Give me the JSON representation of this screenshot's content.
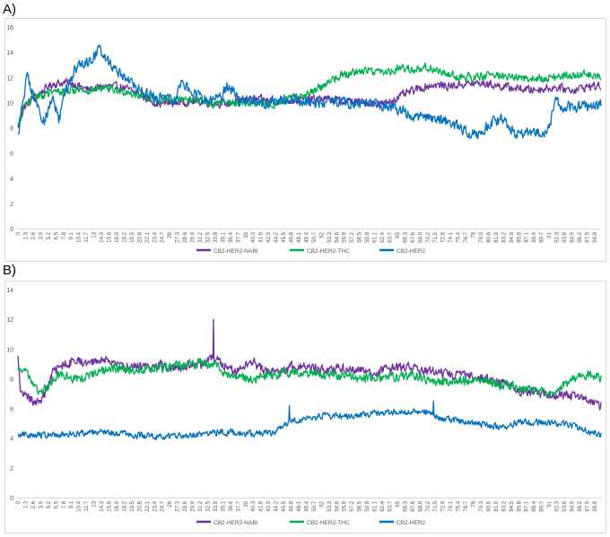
{
  "figure": {
    "panel_a_label": "A)",
    "panel_b_label": "B)"
  },
  "chart_data": [
    {
      "type": "line",
      "panel": "A)",
      "title": "",
      "xlabel": "",
      "ylabel": "",
      "ylim": [
        0,
        16
      ],
      "yticks": [
        0,
        2,
        4,
        6,
        8,
        10,
        12,
        14,
        16
      ],
      "grid": false,
      "legend_position": "bottom",
      "x_start": 0,
      "x_end": 99.9,
      "x_step": 0.1,
      "x_tick_labels": [
        "0",
        "1.3",
        "2.6",
        "3.9",
        "5.2",
        "6.5",
        "7.8",
        "9.1",
        "10.4",
        "11.7",
        "13",
        "14.3",
        "15.6",
        "16.9",
        "18.2",
        "19.5",
        "20.8",
        "22.1",
        "23.4",
        "24.7",
        "26",
        "27.3",
        "28.6",
        "29.9",
        "31.2",
        "32.5",
        "33.8",
        "35.1",
        "36.4",
        "37.7",
        "39",
        "40.3",
        "41.6",
        "42.9",
        "44.2",
        "45.5",
        "46.8",
        "48.1",
        "49.4",
        "50.7",
        "52",
        "53.3",
        "54.6",
        "55.9",
        "57.2",
        "58.5",
        "59.8",
        "61.1",
        "62.4",
        "63.7",
        "65",
        "66.3",
        "67.6",
        "68.9",
        "70.2",
        "71.5",
        "72.8",
        "74.1",
        "75.4",
        "76.7",
        "78",
        "79.3",
        "80.6",
        "81.9",
        "83.2",
        "84.5",
        "85.8",
        "87.1",
        "88.4",
        "89.7",
        "91",
        "92.3",
        "93.6",
        "94.9",
        "96.2",
        "97.5",
        "98.8"
      ],
      "series": [
        {
          "name": "CB2-HER2-NABI",
          "color": "#7030a0",
          "profile": [
            [
              0,
              8.0
            ],
            [
              1,
              9.6
            ],
            [
              3,
              10.5
            ],
            [
              6,
              11.5
            ],
            [
              9,
              11.6
            ],
            [
              12,
              11.0
            ],
            [
              15,
              11.3
            ],
            [
              18,
              11.2
            ],
            [
              21,
              10.6
            ],
            [
              24,
              9.9
            ],
            [
              27,
              10.0
            ],
            [
              30,
              10.1
            ],
            [
              33,
              10.0
            ],
            [
              36,
              9.9
            ],
            [
              40,
              10.3
            ],
            [
              44,
              10.1
            ],
            [
              48,
              10.2
            ],
            [
              52,
              10.3
            ],
            [
              56,
              10.1
            ],
            [
              60,
              10.0
            ],
            [
              63,
              9.9
            ],
            [
              65,
              10.4
            ],
            [
              68,
              11.0
            ],
            [
              71,
              11.4
            ],
            [
              74,
              11.3
            ],
            [
              77,
              11.5
            ],
            [
              80,
              11.5
            ],
            [
              84,
              11.2
            ],
            [
              88,
              11.0
            ],
            [
              92,
              11.2
            ],
            [
              95,
              11.0
            ],
            [
              98,
              11.3
            ],
            [
              100,
              11.3
            ]
          ],
          "noise": 0.45
        },
        {
          "name": "CB2-HER2-THC",
          "color": "#00b050",
          "profile": [
            [
              0,
              8.0
            ],
            [
              1,
              9.8
            ],
            [
              3,
              10.4
            ],
            [
              6,
              10.8
            ],
            [
              9,
              11.0
            ],
            [
              12,
              11.0
            ],
            [
              15,
              11.1
            ],
            [
              18,
              10.9
            ],
            [
              21,
              10.6
            ],
            [
              24,
              10.2
            ],
            [
              27,
              10.3
            ],
            [
              30,
              10.2
            ],
            [
              33,
              9.9
            ],
            [
              36,
              10.0
            ],
            [
              40,
              10.0
            ],
            [
              44,
              9.8
            ],
            [
              46,
              10.2
            ],
            [
              48,
              10.5
            ],
            [
              50,
              10.8
            ],
            [
              52,
              11.2
            ],
            [
              54,
              11.9
            ],
            [
              56,
              12.3
            ],
            [
              60,
              12.6
            ],
            [
              63,
              12.4
            ],
            [
              66,
              12.8
            ],
            [
              68,
              12.6
            ],
            [
              70,
              12.8
            ],
            [
              74,
              12.2
            ],
            [
              78,
              12.0
            ],
            [
              82,
              12.2
            ],
            [
              86,
              11.9
            ],
            [
              90,
              11.9
            ],
            [
              94,
              12.1
            ],
            [
              97,
              12.2
            ],
            [
              100,
              12.1
            ]
          ],
          "noise": 0.45
        },
        {
          "name": "CB2-HER2",
          "color": "#0070c0",
          "profile": [
            [
              0,
              7.3
            ],
            [
              0.5,
              9.0
            ],
            [
              1.5,
              12.2
            ],
            [
              3,
              10.0
            ],
            [
              4.5,
              8.5
            ],
            [
              6,
              10.5
            ],
            [
              7,
              8.4
            ],
            [
              8,
              10.6
            ],
            [
              10,
              12.8
            ],
            [
              12,
              13.2
            ],
            [
              14,
              14.2
            ],
            [
              16,
              13.0
            ],
            [
              18,
              12.2
            ],
            [
              20,
              11.3
            ],
            [
              22,
              10.6
            ],
            [
              25,
              10.3
            ],
            [
              27,
              10.3
            ],
            [
              28,
              11.6
            ],
            [
              30,
              10.8
            ],
            [
              32,
              10.3
            ],
            [
              35,
              10.5
            ],
            [
              36,
              11.3
            ],
            [
              38,
              10.2
            ],
            [
              42,
              10.0
            ],
            [
              46,
              10.3
            ],
            [
              50,
              10.0
            ],
            [
              54,
              10.1
            ],
            [
              58,
              9.9
            ],
            [
              62,
              9.8
            ],
            [
              65,
              9.5
            ],
            [
              68,
              8.9
            ],
            [
              72,
              8.6
            ],
            [
              75,
              8.2
            ],
            [
              77,
              7.7
            ],
            [
              79,
              7.5
            ],
            [
              81,
              8.4
            ],
            [
              83,
              8.7
            ],
            [
              85,
              7.6
            ],
            [
              88,
              7.5
            ],
            [
              90,
              7.6
            ],
            [
              91,
              8.0
            ],
            [
              92,
              10.1
            ],
            [
              94,
              9.6
            ],
            [
              97,
              9.7
            ],
            [
              100,
              9.9
            ]
          ],
          "noise": 0.6
        }
      ]
    },
    {
      "type": "line",
      "panel": "B)",
      "title": "",
      "xlabel": "",
      "ylabel": "",
      "ylim": [
        0,
        14
      ],
      "yticks": [
        0,
        2,
        4,
        6,
        8,
        10,
        12,
        14
      ],
      "grid": false,
      "legend_position": "bottom",
      "x_start": 0,
      "x_end": 99.9,
      "x_step": 0.1,
      "x_tick_labels": [
        "0",
        "1.3",
        "2.6",
        "3.9",
        "5.2",
        "6.5",
        "7.8",
        "9.1",
        "10.4",
        "11.7",
        "13",
        "14.3",
        "15.6",
        "16.9",
        "18.2",
        "19.5",
        "20.8",
        "22.1",
        "23.4",
        "24.7",
        "26",
        "27.3",
        "28.6",
        "29.9",
        "31.2",
        "32.5",
        "33.8",
        "35.1",
        "36.4",
        "37.7",
        "39",
        "40.3",
        "41.6",
        "42.9",
        "44.2",
        "45.5",
        "46.8",
        "48.1",
        "49.4",
        "50.7",
        "52",
        "53.3",
        "54.6",
        "55.9",
        "57.2",
        "58.5",
        "59.8",
        "61.1",
        "62.4",
        "63.7",
        "65",
        "66.3",
        "67.6",
        "68.9",
        "70.2",
        "71.5",
        "72.8",
        "74.1",
        "75.4",
        "76.7",
        "78",
        "79.3",
        "80.6",
        "81.9",
        "83.2",
        "84.5",
        "85.8",
        "87.1",
        "88.4",
        "89.7",
        "91",
        "92.3",
        "93.6",
        "94.9",
        "96.2",
        "97.5",
        "98.8"
      ],
      "series": [
        {
          "name": "CB2-HER2-NABI",
          "color": "#7030a0",
          "profile": [
            [
              0,
              9.4
            ],
            [
              0.5,
              7.0
            ],
            [
              3,
              6.4
            ],
            [
              4.5,
              6.8
            ],
            [
              6,
              8.4
            ],
            [
              8,
              9.0
            ],
            [
              10,
              9.2
            ],
            [
              12,
              9.1
            ],
            [
              15,
              9.3
            ],
            [
              18,
              8.9
            ],
            [
              21,
              8.8
            ],
            [
              24,
              8.9
            ],
            [
              27,
              8.8
            ],
            [
              30,
              8.9
            ],
            [
              32,
              9.0
            ],
            [
              33,
              9.4
            ],
            [
              35,
              9.0
            ],
            [
              37,
              8.5
            ],
            [
              40,
              9.2
            ],
            [
              42,
              8.6
            ],
            [
              45,
              8.5
            ],
            [
              48,
              8.9
            ],
            [
              52,
              8.6
            ],
            [
              56,
              8.7
            ],
            [
              60,
              8.5
            ],
            [
              63,
              8.6
            ],
            [
              66,
              8.8
            ],
            [
              70,
              8.5
            ],
            [
              74,
              8.3
            ],
            [
              78,
              8.1
            ],
            [
              82,
              7.8
            ],
            [
              84,
              7.5
            ],
            [
              86,
              7.2
            ],
            [
              90,
              7.0
            ],
            [
              94,
              6.9
            ],
            [
              97,
              6.6
            ],
            [
              100,
              6.2
            ]
          ],
          "noise": 0.45,
          "spikes": [
            [
              33.5,
              12.0
            ]
          ]
        },
        {
          "name": "CB2-HER2-THC",
          "color": "#00b050",
          "profile": [
            [
              0,
              8.4
            ],
            [
              1,
              8.8
            ],
            [
              2,
              8.0
            ],
            [
              3,
              7.4
            ],
            [
              4,
              7.0
            ],
            [
              5,
              7.5
            ],
            [
              7,
              8.2
            ],
            [
              10,
              8.0
            ],
            [
              13,
              8.3
            ],
            [
              16,
              8.7
            ],
            [
              20,
              8.6
            ],
            [
              24,
              8.7
            ],
            [
              28,
              8.9
            ],
            [
              32,
              9.1
            ],
            [
              34,
              8.8
            ],
            [
              36,
              8.2
            ],
            [
              40,
              8.0
            ],
            [
              44,
              8.3
            ],
            [
              48,
              8.5
            ],
            [
              52,
              8.3
            ],
            [
              56,
              8.2
            ],
            [
              60,
              8.0
            ],
            [
              64,
              8.1
            ],
            [
              68,
              8.2
            ],
            [
              72,
              7.8
            ],
            [
              76,
              7.9
            ],
            [
              80,
              7.9
            ],
            [
              84,
              7.5
            ],
            [
              88,
              7.2
            ],
            [
              90,
              7.1
            ],
            [
              92,
              7.0
            ],
            [
              94,
              7.7
            ],
            [
              96,
              8.2
            ],
            [
              98,
              8.3
            ],
            [
              100,
              8.0
            ]
          ],
          "noise": 0.45
        },
        {
          "name": "CB2-HER2",
          "color": "#0070c0",
          "profile": [
            [
              0,
              4.2
            ],
            [
              5,
              4.2
            ],
            [
              10,
              4.3
            ],
            [
              15,
              4.4
            ],
            [
              20,
              4.2
            ],
            [
              25,
              4.1
            ],
            [
              30,
              4.2
            ],
            [
              35,
              4.4
            ],
            [
              40,
              4.3
            ],
            [
              44,
              4.4
            ],
            [
              46,
              5.0
            ],
            [
              48,
              5.2
            ],
            [
              50,
              5.4
            ],
            [
              53,
              5.5
            ],
            [
              56,
              5.5
            ],
            [
              60,
              5.6
            ],
            [
              65,
              5.8
            ],
            [
              70,
              5.8
            ],
            [
              72,
              5.4
            ],
            [
              75,
              5.2
            ],
            [
              78,
              5.0
            ],
            [
              80,
              4.9
            ],
            [
              83,
              4.7
            ],
            [
              86,
              5.1
            ],
            [
              90,
              5.0
            ],
            [
              94,
              4.9
            ],
            [
              97,
              4.6
            ],
            [
              100,
              4.2
            ]
          ],
          "noise": 0.3,
          "spikes": [
            [
              46.5,
              6.2
            ],
            [
              71.2,
              6.5
            ]
          ]
        }
      ]
    }
  ]
}
